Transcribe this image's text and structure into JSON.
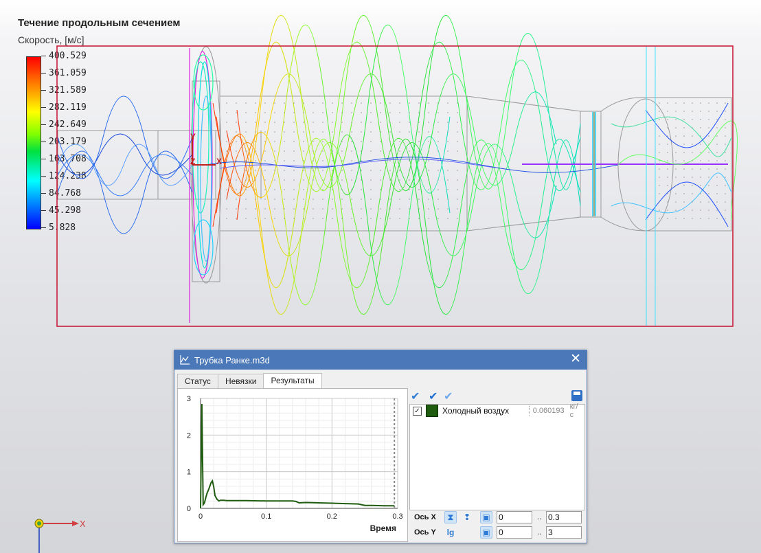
{
  "scene": {
    "title": "Течение продольным сечением",
    "legend_title": "Скорость, [м/с]",
    "legend_ticks": [
      "400.529",
      "361.059",
      "321.589",
      "282.119",
      "242.649",
      "203.179",
      "163.708",
      "124.238",
      "84.768",
      "45.298",
      "5.828"
    ],
    "axes_labels": {
      "x": "X",
      "y": "Y",
      "z": "Z"
    },
    "triad_x": "X",
    "colors": {
      "bounding_box": "#c8102e",
      "origin_x": "#c02020",
      "origin_y": "#c02020"
    }
  },
  "dialog": {
    "title": "Трубка Ранке.m3d",
    "close_label": "✕",
    "tabs": [
      {
        "label": "Статус"
      },
      {
        "label": "Невязки"
      },
      {
        "label": "Результаты"
      }
    ],
    "active_tab": "Результаты",
    "series_item": {
      "checked": true,
      "name": "Холодный воздух",
      "value": "0.060193",
      "unit": "кг/с",
      "color": "#1f5c0f"
    },
    "axis_x": {
      "label": "Ось X",
      "min": "0",
      "max": "0.3",
      "dots": ".."
    },
    "axis_y": {
      "label": "Ось Y",
      "min": "0",
      "max": "3",
      "dots": "..",
      "log_label": "lg"
    }
  },
  "chart_data": {
    "type": "line",
    "xlabel": "Время",
    "ylabel": "",
    "xlim": [
      0,
      0.3
    ],
    "ylim": [
      0,
      3
    ],
    "x_ticks": [
      "0",
      "0.1",
      "0.2",
      "0.3"
    ],
    "y_ticks": [
      "0",
      "1",
      "2",
      "3"
    ],
    "grid": true,
    "series": [
      {
        "color": "#1f5c0f",
        "x": [
          0,
          0.002,
          0.004,
          0.006,
          0.008,
          0.01,
          0.012,
          0.014,
          0.016,
          0.018,
          0.02,
          0.022,
          0.025,
          0.028,
          0.03,
          0.035,
          0.04,
          0.05,
          0.07,
          0.1,
          0.13,
          0.14,
          0.145,
          0.15,
          0.16,
          0.18,
          0.2,
          0.22,
          0.24,
          0.25,
          0.26,
          0.28,
          0.295
        ],
        "y": [
          0,
          2.85,
          0.1,
          0.15,
          0.3,
          0.42,
          0.5,
          0.6,
          0.7,
          0.75,
          0.6,
          0.35,
          0.25,
          0.2,
          0.22,
          0.22,
          0.21,
          0.21,
          0.21,
          0.2,
          0.2,
          0.2,
          0.19,
          0.15,
          0.16,
          0.15,
          0.14,
          0.13,
          0.12,
          0.08,
          0.08,
          0.07,
          0.07
        ]
      }
    ]
  }
}
